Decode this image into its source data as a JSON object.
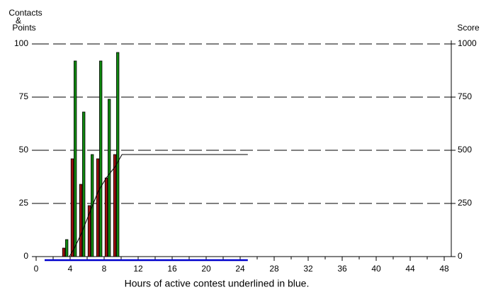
{
  "chart_data": {
    "type": "bar",
    "y_label": [
      "Contacts",
      "&",
      "Points"
    ],
    "y2_label": "Score",
    "x_label": "Hours of active contest underlined in blue.",
    "xlim": [
      0,
      49
    ],
    "xticks": [
      0,
      4,
      8,
      12,
      16,
      20,
      24,
      28,
      32,
      36,
      40,
      44,
      48
    ],
    "ylim": [
      0,
      100
    ],
    "yticks": [
      0,
      25,
      50,
      75,
      100
    ],
    "y2lim": [
      0,
      1000
    ],
    "y2ticks": [
      0,
      250,
      500,
      750,
      1000
    ],
    "grid": true,
    "x": [
      3,
      4,
      5,
      6,
      7,
      8,
      9
    ],
    "series": [
      {
        "color": "#a01010",
        "values": [
          4,
          46,
          34,
          24,
          46,
          37,
          48
        ]
      },
      {
        "color": "#108a10",
        "values": [
          8,
          92,
          68,
          48,
          92,
          74,
          96
        ]
      }
    ],
    "score": {
      "axis": "y2",
      "color": "#000000",
      "x": [
        3.9,
        4.5,
        5.3,
        6.3,
        7.3,
        8.3,
        9.3,
        10.1,
        24.9
      ],
      "values": [
        0,
        40,
        107,
        207,
        307,
        373,
        423,
        480,
        480
      ]
    },
    "active": {
      "color": "#0000cc",
      "x": [
        1,
        24.9
      ]
    }
  }
}
